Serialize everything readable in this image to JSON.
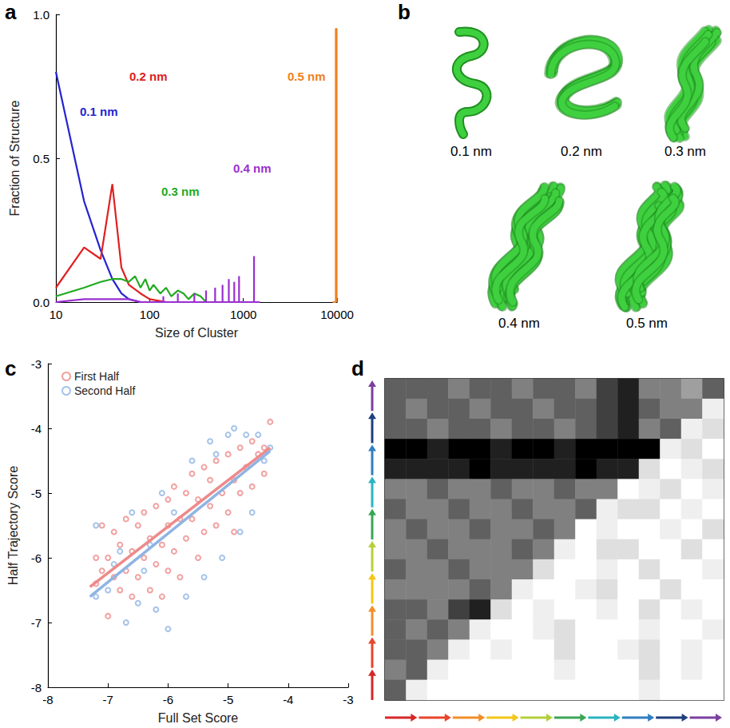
{
  "chart_data": [
    {
      "letter": "a",
      "type": "line",
      "x_label": "Size of Cluster",
      "y_label": "Fraction of Structure",
      "log": "x",
      "xlim": [
        10,
        10000
      ],
      "xticks": [
        10,
        100,
        1000,
        10000
      ],
      "ylim": [
        0,
        1
      ],
      "yticks": [
        {
          "value": 0,
          "label": "0.0"
        },
        {
          "value": 0.5,
          "label": "0.5"
        },
        {
          "value": 1,
          "label": "1.0"
        }
      ],
      "series": [
        {
          "name": "0.1 nm",
          "color": "#2424d0",
          "x": [
            10,
            20,
            30,
            40,
            50,
            60,
            80,
            100
          ],
          "values": [
            0.8,
            0.35,
            0.18,
            0.08,
            0.03,
            0.01,
            0,
            0
          ]
        },
        {
          "name": "0.2 nm",
          "color": "#e02020",
          "x": [
            10,
            20,
            30,
            40,
            50,
            60,
            80,
            100,
            150,
            200
          ],
          "values": [
            0.05,
            0.19,
            0.15,
            0.41,
            0.12,
            0.06,
            0.03,
            0.01,
            0,
            0
          ]
        },
        {
          "name": "0.3 nm",
          "color": "#22aa22",
          "x": [
            10,
            20,
            30,
            40,
            50,
            60,
            70,
            80,
            90,
            100,
            110,
            130,
            150,
            170,
            200,
            230,
            260,
            300,
            350,
            400
          ],
          "values": [
            0.02,
            0.05,
            0.07,
            0.08,
            0.08,
            0.07,
            0.09,
            0.05,
            0.08,
            0.04,
            0.06,
            0.03,
            0.05,
            0.02,
            0.04,
            0.03,
            0.01,
            0.03,
            0.02,
            0
          ]
        },
        {
          "name": "0.4 nm",
          "color": "#9a2fd0",
          "x": [
            10,
            20,
            30,
            40,
            50,
            60,
            80,
            100,
            120,
            140,
            140,
            140,
            180,
            200,
            200,
            200,
            230,
            300,
            300,
            300,
            350,
            400,
            400,
            400,
            450,
            500,
            500,
            500,
            550,
            600,
            600,
            600,
            650,
            700,
            700,
            700,
            750,
            800,
            800,
            800,
            850,
            900,
            900,
            900,
            1000,
            1300,
            1300,
            1300,
            1500
          ],
          "values": [
            0,
            0.01,
            0.01,
            0.01,
            0.01,
            0.01,
            0,
            0,
            0,
            0,
            0.02,
            0,
            0,
            0,
            0.03,
            0,
            0,
            0,
            0.03,
            0,
            0,
            0,
            0.04,
            0,
            0,
            0,
            0.05,
            0,
            0,
            0,
            0.06,
            0,
            0,
            0,
            0.08,
            0,
            0,
            0,
            0.07,
            0,
            0,
            0,
            0.09,
            0,
            0,
            0,
            0.16,
            0,
            0
          ]
        },
        {
          "name": "0.5 nm",
          "color": "#f08020",
          "x": [
            9000,
            9700,
            9700,
            9900,
            9900
          ],
          "values": [
            0,
            0,
            0.95,
            0.95,
            0
          ]
        }
      ]
    },
    {
      "letter": "c",
      "type": "scatter",
      "x_label": "Full Set Score",
      "y_label": "Half Trajectory Score",
      "xlim": [
        -8,
        -3
      ],
      "xticks": [
        -8,
        -7,
        -6,
        -5,
        -4,
        -3
      ],
      "ylim": [
        -8,
        -3
      ],
      "yticks": [
        -8,
        -7,
        -6,
        -5,
        -4,
        -3
      ],
      "legend": "top-left",
      "marker": "open-circle",
      "series": [
        {
          "name": "First Half",
          "color": "#ee8a8a",
          "x": [
            -7.2,
            -7.2,
            -7.1,
            -7.1,
            -7.0,
            -7.0,
            -6.9,
            -6.9,
            -6.8,
            -6.8,
            -6.7,
            -6.7,
            -6.6,
            -6.6,
            -6.5,
            -6.5,
            -6.4,
            -6.4,
            -6.3,
            -6.3,
            -6.2,
            -6.2,
            -6.1,
            -6.1,
            -6.0,
            -6.0,
            -6.0,
            -5.9,
            -5.9,
            -5.8,
            -5.8,
            -5.7,
            -5.7,
            -5.6,
            -5.6,
            -5.5,
            -5.5,
            -5.4,
            -5.4,
            -5.3,
            -5.3,
            -5.2,
            -5.2,
            -5.1,
            -5.0,
            -5.0,
            -4.9,
            -4.9,
            -4.8,
            -4.8,
            -4.7,
            -4.6,
            -4.6,
            -4.5,
            -4.4,
            -4.3,
            -4.4
          ],
          "values": [
            -6.4,
            -6.0,
            -5.5,
            -6.2,
            -6.9,
            -6.0,
            -5.6,
            -6.3,
            -6.5,
            -5.8,
            -5.4,
            -6.2,
            -6.6,
            -5.9,
            -5.5,
            -6.3,
            -6.0,
            -5.3,
            -6.5,
            -5.7,
            -5.2,
            -6.1,
            -5.8,
            -6.6,
            -5.1,
            -5.5,
            -6.2,
            -4.9,
            -5.9,
            -5.4,
            -6.3,
            -5.0,
            -5.7,
            -4.7,
            -5.4,
            -6.0,
            -5.1,
            -4.6,
            -5.6,
            -5.2,
            -4.8,
            -5.5,
            -4.5,
            -5.0,
            -4.4,
            -5.3,
            -4.8,
            -5.6,
            -4.3,
            -5.0,
            -4.6,
            -4.2,
            -4.9,
            -4.4,
            -4.3,
            -3.9,
            -4.7
          ],
          "fit": {
            "x": [
              -7.3,
              -4.3
            ],
            "values": [
              -6.45,
              -4.3
            ]
          }
        },
        {
          "name": "Second Half",
          "color": "#8fb4e3",
          "x": [
            -7.2,
            -7.2,
            -7.0,
            -6.9,
            -6.7,
            -6.6,
            -6.5,
            -6.4,
            -6.2,
            -6.1,
            -6.0,
            -5.9,
            -5.7,
            -5.6,
            -5.4,
            -5.3,
            -5.1,
            -5.0,
            -4.9,
            -4.8,
            -4.7,
            -4.6,
            -4.5,
            -4.4,
            -4.3,
            -5.2,
            -6.8,
            -6.3
          ],
          "values": [
            -6.6,
            -5.5,
            -6.5,
            -6.1,
            -7.0,
            -5.3,
            -6.7,
            -6.2,
            -6.8,
            -5.0,
            -7.1,
            -5.3,
            -6.6,
            -4.5,
            -6.3,
            -4.2,
            -6.0,
            -4.1,
            -4.0,
            -5.6,
            -4.1,
            -5.3,
            -4.1,
            -4.5,
            -4.3,
            -4.4,
            -5.9,
            -5.8
          ],
          "fit": {
            "x": [
              -7.3,
              -4.3
            ],
            "values": [
              -6.6,
              -4.35
            ]
          }
        }
      ]
    },
    {
      "letter": "d",
      "type": "heatmap",
      "tick_labels": false,
      "colors": [
        "#d62728",
        "#e8452c",
        "#f28e2b",
        "#f5c518",
        "#b5cf3a",
        "#3aa655",
        "#2bb3c0",
        "#2f7fc1",
        "#1f3f7f",
        "#7b3fa0"
      ],
      "cells": [
        [
          0.5,
          0.5,
          0.5,
          0.4,
          0.5,
          0.5,
          0.4,
          0.5,
          0.5,
          0.4,
          0.6,
          0.7,
          0.4,
          0.4,
          0.3,
          0.5
        ],
        [
          0.5,
          0.4,
          0.5,
          0.5,
          0.4,
          0.5,
          0.5,
          0.4,
          0.5,
          0.5,
          0.6,
          0.7,
          0.5,
          0.4,
          0.4,
          0.05
        ],
        [
          0.5,
          0.5,
          0.4,
          0.5,
          0.5,
          0.4,
          0.5,
          0.5,
          0.4,
          0.5,
          0.6,
          0.7,
          0.4,
          0.5,
          0.05,
          0.1
        ],
        [
          0.8,
          0.8,
          0.7,
          0.8,
          0.8,
          0.7,
          0.8,
          0.8,
          0.7,
          0.8,
          0.8,
          0.8,
          0.8,
          0.05,
          0.1,
          0
        ],
        [
          0.7,
          0.7,
          0.7,
          0.7,
          0.8,
          0.7,
          0.7,
          0.7,
          0.7,
          0.8,
          0.7,
          0.7,
          0.1,
          0,
          0.05,
          0.1
        ],
        [
          0.4,
          0.4,
          0.5,
          0.4,
          0.4,
          0.5,
          0.4,
          0.4,
          0.5,
          0.4,
          0.4,
          0,
          0.05,
          0.1,
          0,
          0.05
        ],
        [
          0.5,
          0.4,
          0.4,
          0.5,
          0.4,
          0.4,
          0.5,
          0.4,
          0.4,
          0.5,
          0.05,
          0.1,
          0.1,
          0,
          0.05,
          0
        ],
        [
          0.4,
          0.5,
          0.4,
          0.4,
          0.5,
          0.4,
          0.4,
          0.5,
          0.4,
          0,
          0.05,
          0,
          0,
          0.05,
          0,
          0.1
        ],
        [
          0.4,
          0.4,
          0.5,
          0.4,
          0.4,
          0.4,
          0.5,
          0.4,
          0.05,
          0,
          0.1,
          0.1,
          0,
          0,
          0.1,
          0
        ],
        [
          0.5,
          0.4,
          0.4,
          0.5,
          0.4,
          0.4,
          0.4,
          0.1,
          0,
          0,
          0.05,
          0,
          0.1,
          0,
          0,
          0.05
        ],
        [
          0.4,
          0.4,
          0.4,
          0.4,
          0.5,
          0.4,
          0.05,
          0,
          0,
          0.05,
          0.1,
          0,
          0,
          0.1,
          0,
          0
        ],
        [
          0.5,
          0.5,
          0.4,
          0.6,
          0.7,
          0.1,
          0,
          0.05,
          0,
          0,
          0.05,
          0,
          0.1,
          0,
          0.05,
          0
        ],
        [
          0.5,
          0.4,
          0.5,
          0.4,
          0.05,
          0,
          0,
          0.05,
          0.1,
          0,
          0,
          0,
          0.05,
          0,
          0,
          0.05
        ],
        [
          0.5,
          0.5,
          0.4,
          0.05,
          0,
          0.05,
          0,
          0,
          0.1,
          0,
          0,
          0.05,
          0.1,
          0,
          0.05,
          0
        ],
        [
          0.4,
          0.5,
          0.05,
          0,
          0,
          0,
          0,
          0,
          0.05,
          0,
          0,
          0,
          0.1,
          0,
          0.05,
          0
        ],
        [
          0.5,
          0.05,
          0,
          0,
          0,
          0,
          0,
          0,
          0,
          0,
          0,
          0,
          0.05,
          0,
          0,
          0
        ]
      ]
    }
  ],
  "panel_b": {
    "letter": "b",
    "labels": [
      "0.1 nm",
      "0.2 nm",
      "0.3 nm",
      "0.4 nm",
      "0.5 nm"
    ]
  }
}
